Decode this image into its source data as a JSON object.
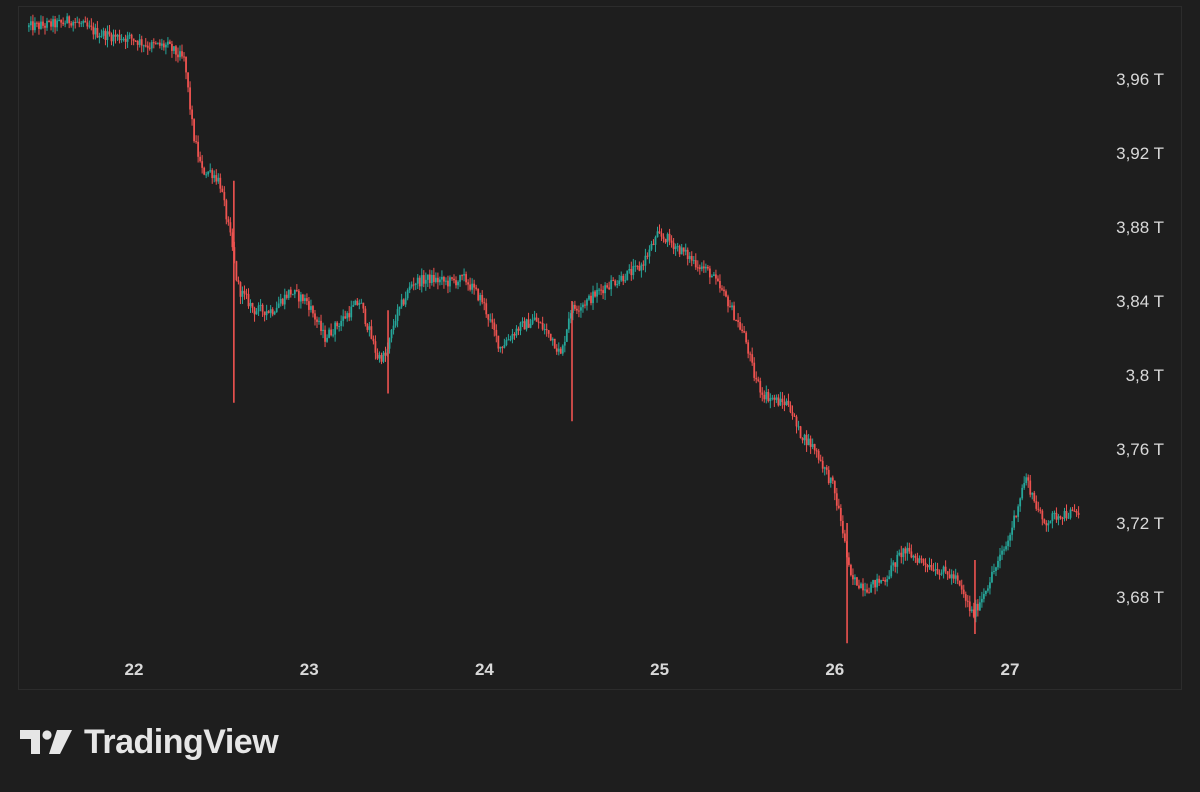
{
  "brand": {
    "name": "TradingView",
    "logo": "tradingview-logo-icon"
  },
  "colors": {
    "background": "#1e1e1e",
    "up": "#26a69a",
    "down": "#ef5350",
    "text": "#d9d9d9",
    "border": "#2c2c2c"
  },
  "chart_data": {
    "type": "line",
    "title": "",
    "xlabel": "",
    "ylabel": "",
    "grid": false,
    "xlim": [
      21.4,
      27.9
    ],
    "ylim": [
      3.651,
      4.002
    ],
    "x_ticks": [
      {
        "value": 22,
        "label": "22"
      },
      {
        "value": 23,
        "label": "23"
      },
      {
        "value": 24,
        "label": "24"
      },
      {
        "value": 25,
        "label": "25"
      },
      {
        "value": 26,
        "label": "26"
      },
      {
        "value": 27,
        "label": "27"
      }
    ],
    "y_ticks": [
      {
        "value": 3.96,
        "label": "3,96 T"
      },
      {
        "value": 3.92,
        "label": "3,92 T"
      },
      {
        "value": 3.88,
        "label": "3,88 T"
      },
      {
        "value": 3.84,
        "label": "3,84 T"
      },
      {
        "value": 3.8,
        "label": "3,8 T"
      },
      {
        "value": 3.76,
        "label": "3,76 T"
      },
      {
        "value": 3.72,
        "label": "3,72 T"
      },
      {
        "value": 3.68,
        "label": "3,68 T"
      }
    ],
    "series": [
      {
        "x": [
          21.4,
          21.6,
          21.65,
          21.8,
          21.9,
          22.0,
          22.1,
          22.2,
          22.3,
          22.35,
          22.4,
          22.45,
          22.5,
          22.57,
          22.6,
          22.62,
          22.7,
          22.8,
          22.9,
          23.0,
          23.1,
          23.2,
          23.3,
          23.4,
          23.45,
          23.5,
          23.6,
          23.7,
          23.8,
          23.9,
          24.0,
          24.1,
          24.2,
          24.3,
          24.4,
          24.45,
          24.5,
          24.6,
          24.7,
          24.8,
          24.9,
          25.0,
          25.05,
          25.1,
          25.2,
          25.3,
          25.4,
          25.5,
          25.55,
          25.6,
          25.7,
          25.75,
          25.8,
          25.9,
          26.0,
          26.05,
          26.1,
          26.2,
          26.3,
          26.4,
          26.5,
          26.6,
          26.7,
          26.8,
          26.9,
          27.0,
          27.1,
          27.2,
          27.3,
          27.4
        ],
        "y": [
          3.988,
          3.99,
          3.992,
          3.985,
          3.983,
          3.982,
          3.978,
          3.978,
          3.97,
          3.93,
          3.91,
          3.91,
          3.905,
          3.87,
          3.85,
          3.845,
          3.835,
          3.835,
          3.845,
          3.84,
          3.82,
          3.83,
          3.84,
          3.81,
          3.81,
          3.83,
          3.85,
          3.852,
          3.85,
          3.852,
          3.84,
          3.815,
          3.825,
          3.83,
          3.82,
          3.81,
          3.835,
          3.84,
          3.848,
          3.853,
          3.858,
          3.875,
          3.874,
          3.87,
          3.862,
          3.855,
          3.84,
          3.82,
          3.8,
          3.79,
          3.785,
          3.785,
          3.77,
          3.76,
          3.74,
          3.72,
          3.69,
          3.685,
          3.69,
          3.705,
          3.7,
          3.695,
          3.69,
          3.67,
          3.69,
          3.71,
          3.745,
          3.72,
          3.725,
          3.725
        ],
        "wicks": [
          {
            "x": 22.57,
            "low": 3.785,
            "high": 3.905
          },
          {
            "x": 23.45,
            "low": 3.79,
            "high": 3.835
          },
          {
            "x": 24.5,
            "low": 3.775,
            "high": 3.84
          },
          {
            "x": 26.07,
            "low": 3.655,
            "high": 3.72
          },
          {
            "x": 26.8,
            "low": 3.66,
            "high": 3.7
          }
        ]
      }
    ]
  }
}
